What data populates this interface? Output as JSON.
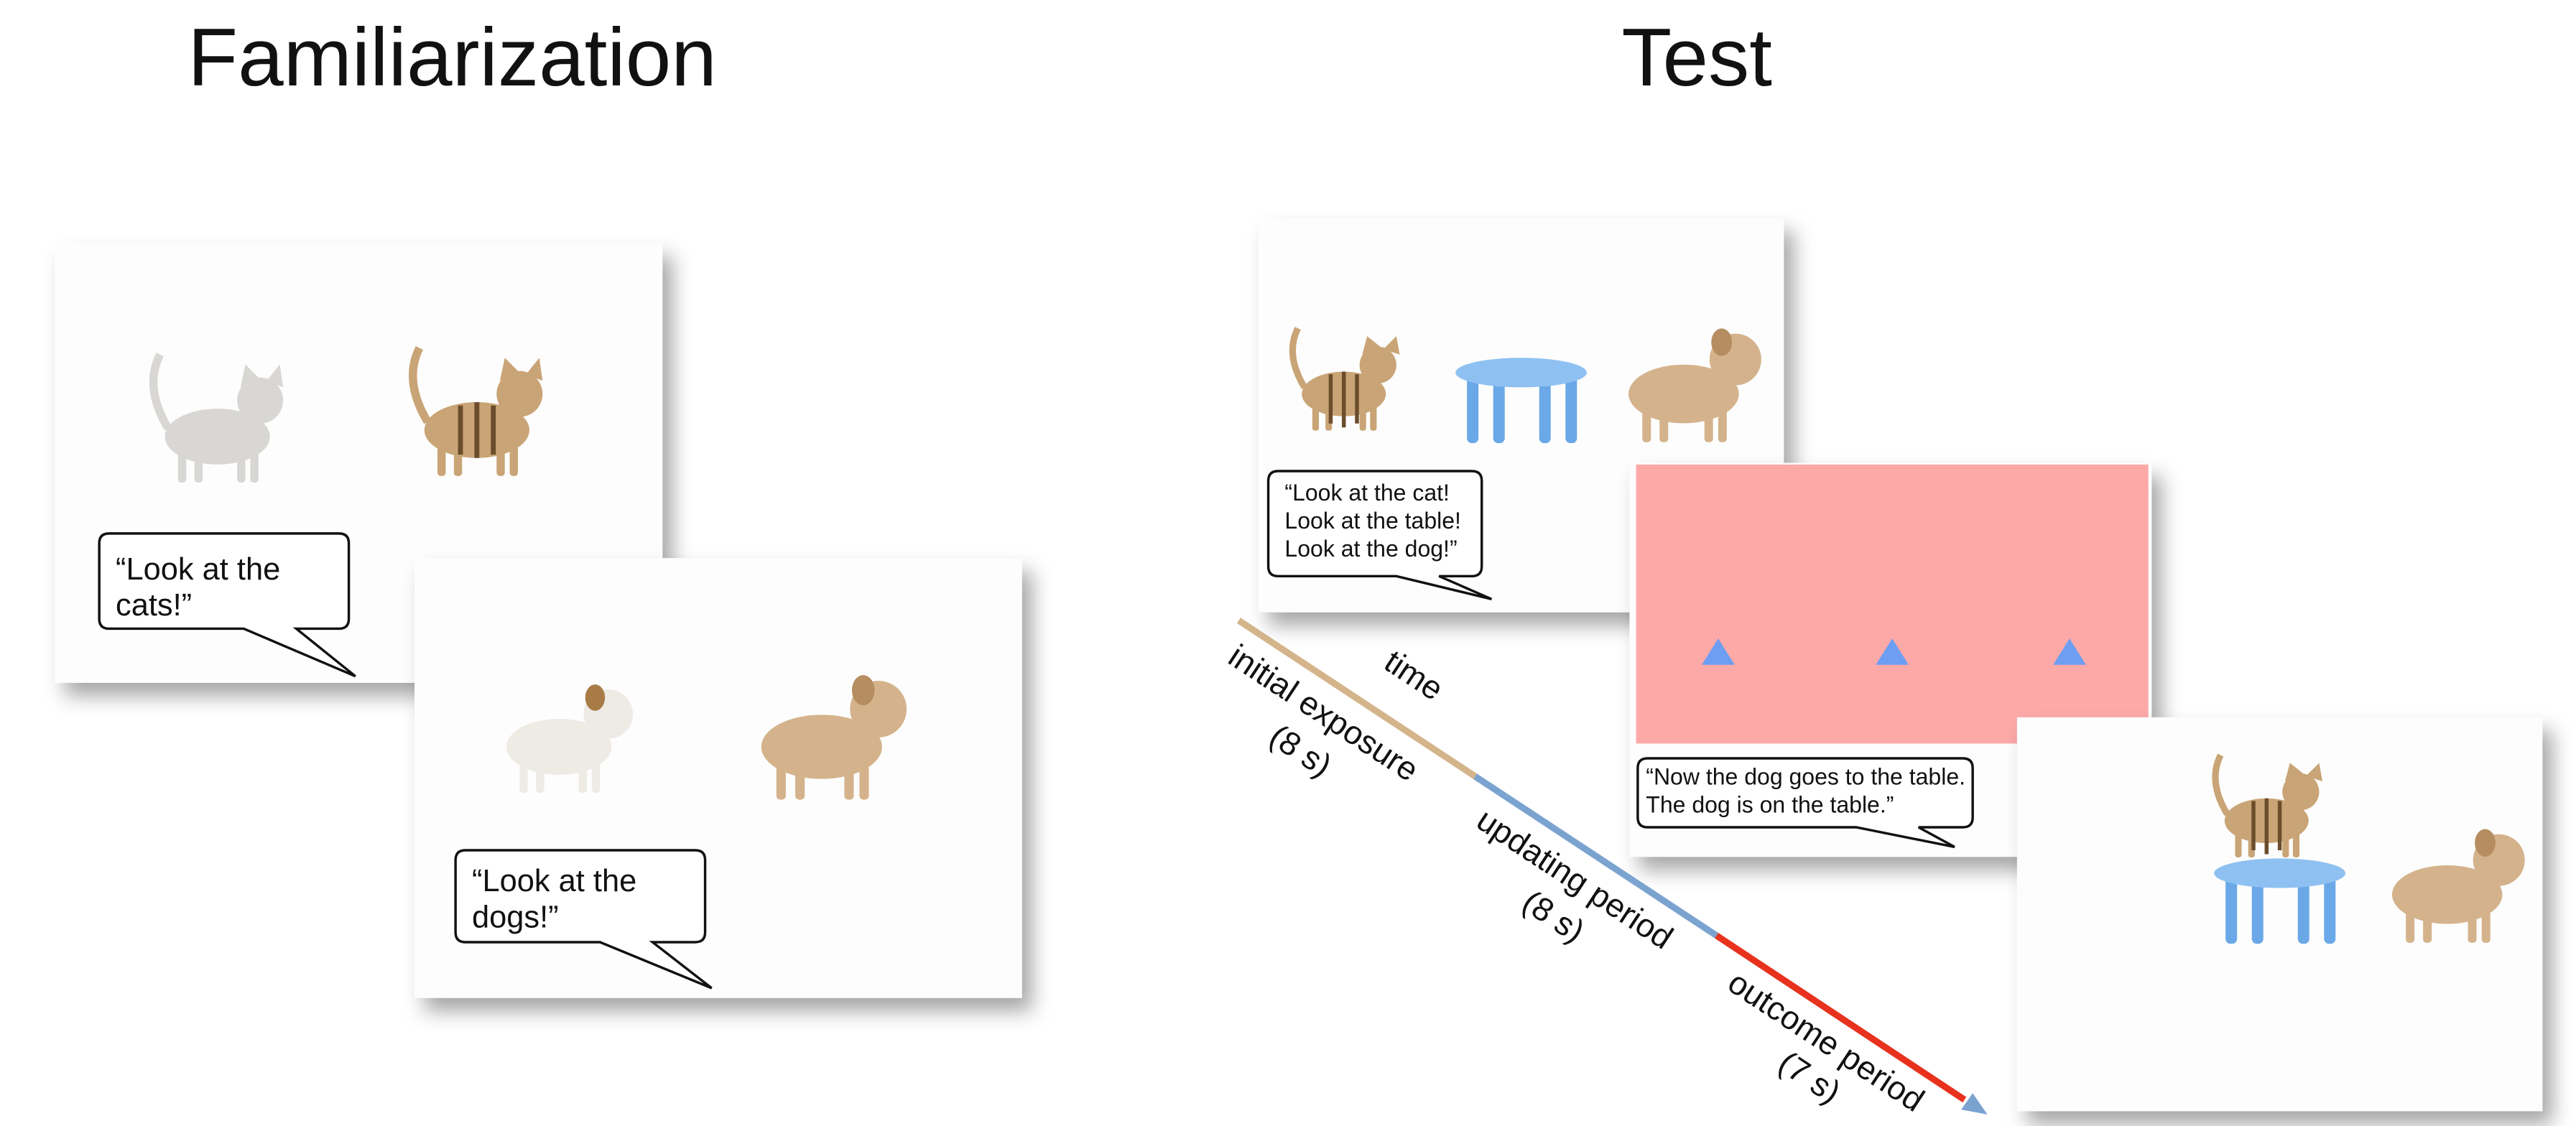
{
  "familiarization": {
    "title": "Familiarization",
    "bubbles": [
      {
        "lines": [
          "“Look at the",
          "cats!”"
        ]
      },
      {
        "lines": [
          "“Look at the",
          "dogs!”"
        ]
      }
    ]
  },
  "test": {
    "title": "Test",
    "bubbles": [
      {
        "lines": [
          "“Look at the cat!",
          "Look at the table!",
          "Look at the dog!”"
        ]
      },
      {
        "lines": [
          "“Now the dog goes to the table.",
          "The dog is on the table.”"
        ]
      }
    ]
  },
  "timeline": {
    "axis_label": "time",
    "phases": [
      {
        "name": "initial exposure",
        "duration": "(8 s)"
      },
      {
        "name": "updating period",
        "duration": "(8 s)"
      },
      {
        "name": "outcome period",
        "duration": "(7 s)"
      }
    ]
  }
}
